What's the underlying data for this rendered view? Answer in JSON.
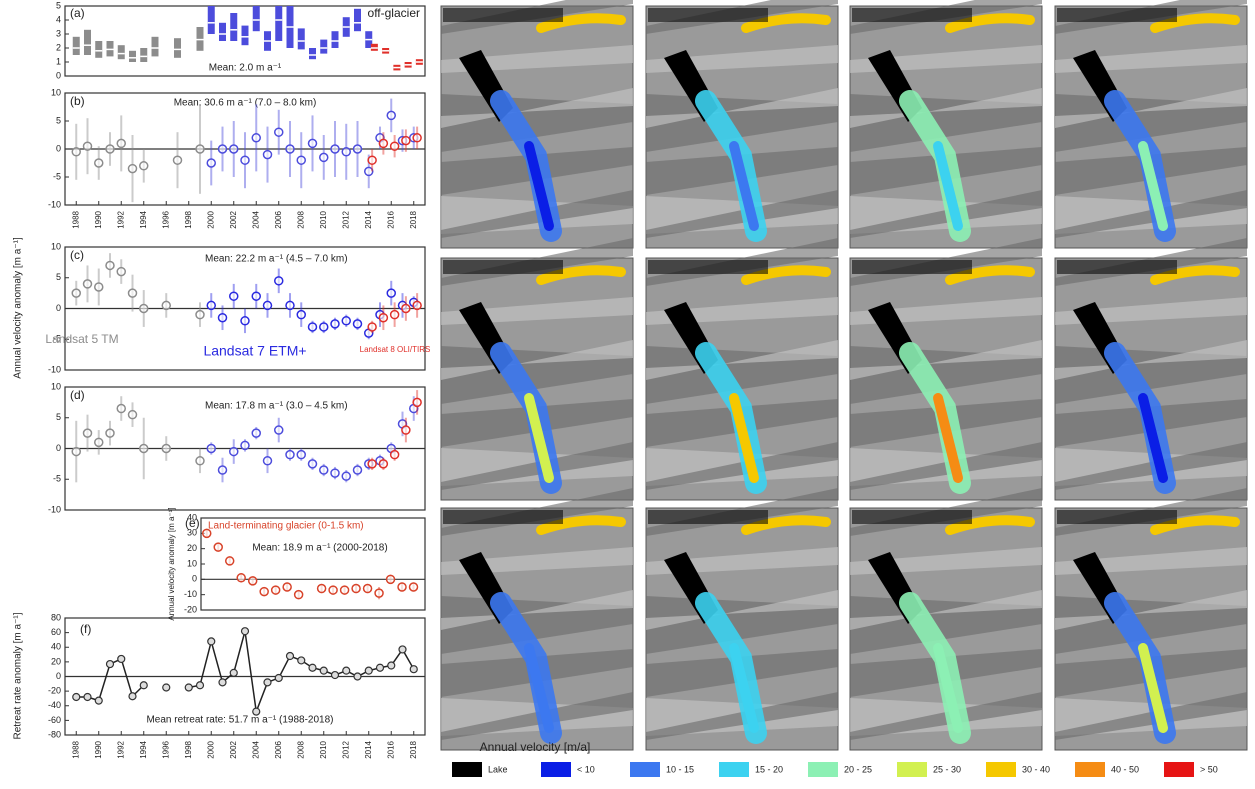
{
  "chart_data": [
    {
      "type": "range",
      "label": "(a)",
      "annotation": "off-glacier",
      "mean": "Mean: 2.0 m a⁻¹",
      "xlim": [
        1987,
        2019
      ],
      "ylim": [
        0,
        5
      ],
      "yticks": [
        0,
        1,
        2,
        3,
        4,
        5
      ],
      "series": [
        {
          "color": "#8c8c8c",
          "x": [
            1988,
            1989,
            1990,
            1991,
            1992,
            1993,
            1994,
            1995,
            1997,
            1999
          ],
          "values": [
            2.0,
            2.2,
            1.8,
            1.9,
            1.6,
            1.3,
            1.4,
            2.0,
            1.9,
            2.6
          ],
          "low": [
            1.5,
            1.5,
            1.3,
            1.4,
            1.2,
            1.0,
            1.0,
            1.4,
            1.3,
            1.8
          ],
          "high": [
            2.8,
            3.3,
            2.5,
            2.5,
            2.2,
            1.8,
            2.0,
            2.8,
            2.7,
            3.5
          ]
        },
        {
          "color": "#4c4cdc",
          "x": [
            2000,
            2001,
            2002,
            2003,
            2004,
            2005,
            2006,
            2007,
            2008,
            2009,
            2010,
            2011,
            2012,
            2013,
            2014
          ],
          "values": [
            3.8,
            3.0,
            3.3,
            2.8,
            4.0,
            2.5,
            4.0,
            3.5,
            2.5,
            1.5,
            2.0,
            2.5,
            3.5,
            3.8,
            2.6
          ],
          "low": [
            3.0,
            2.5,
            2.5,
            2.2,
            3.2,
            1.8,
            2.5,
            2.0,
            1.9,
            1.2,
            1.6,
            2.0,
            2.8,
            3.2,
            2.0
          ],
          "high": [
            5,
            3.8,
            4.5,
            3.6,
            5,
            3.2,
            5,
            5,
            3.4,
            2.0,
            2.6,
            3.2,
            4.2,
            4.8,
            3.2
          ]
        },
        {
          "color": "#e0302a",
          "x": [
            2014.5,
            2015.5,
            2016.5,
            2017.5,
            2018.5
          ],
          "values": [
            2.0,
            1.8,
            0.6,
            0.8,
            1.0
          ],
          "low": [
            1.8,
            1.6,
            0.4,
            0.6,
            0.8
          ],
          "high": [
            2.3,
            2.0,
            0.8,
            1.0,
            1.2
          ]
        }
      ]
    },
    {
      "type": "err",
      "label": "(b)",
      "mean": "Mean: 30.6 m a⁻¹ (7.0 – 8.0 km)",
      "xlim": [
        1987,
        2019
      ],
      "ylim": [
        -10,
        10
      ],
      "yticks": [
        -10,
        -5,
        0,
        5,
        10
      ],
      "xticks": [
        1988,
        1990,
        1992,
        1994,
        1996,
        1998,
        2000,
        2002,
        2004,
        2006,
        2008,
        2010,
        2012,
        2014,
        2016,
        2018
      ],
      "series": [
        {
          "color": "#8c8c8c",
          "x": [
            1988,
            1989,
            1990,
            1991,
            1992,
            1993,
            1994,
            1997,
            1999
          ],
          "values": [
            -0.5,
            0.5,
            -2.5,
            0,
            1,
            -3.5,
            -3,
            -2,
            0
          ],
          "errors": [
            5,
            5,
            3,
            3,
            5,
            6,
            3,
            5,
            8
          ]
        },
        {
          "color": "#4c4cdc",
          "x": [
            2000,
            2001,
            2002,
            2003,
            2004,
            2005,
            2006,
            2007,
            2008,
            2009,
            2010,
            2011,
            2012,
            2013,
            2014,
            2015,
            2016,
            2017,
            2018
          ],
          "values": [
            -2.5,
            0,
            0,
            -2,
            2,
            -1,
            3,
            0,
            -2,
            1,
            -1.5,
            0,
            -0.5,
            0,
            -4,
            2,
            6,
            1.5,
            2
          ],
          "errors": [
            4,
            4,
            5,
            5,
            6,
            5,
            4,
            5,
            5,
            5,
            4,
            5,
            5,
            5,
            3,
            2,
            3,
            2,
            2
          ]
        },
        {
          "color": "#e0302a",
          "x": [
            2014.3,
            2015.3,
            2016.3,
            2017.3,
            2018.3
          ],
          "values": [
            -2,
            1,
            0.5,
            1.5,
            2
          ],
          "errors": [
            2,
            2,
            2,
            2,
            2
          ]
        }
      ]
    },
    {
      "type": "err",
      "label": "(c)",
      "mean": "Mean: 22.2 m a⁻¹ (4.5 – 7.0 km)",
      "ylabel": "Annual velocity anomaly [m a⁻¹]",
      "xlim": [
        1987,
        2019
      ],
      "ylim": [
        -10,
        10
      ],
      "yticks": [
        -10,
        -5,
        0,
        5,
        10
      ],
      "series": [
        {
          "name": "Landsat 5 TM",
          "color": "#8c8c8c",
          "x": [
            1988,
            1989,
            1990,
            1991,
            1992,
            1993,
            1994,
            1996,
            1999
          ],
          "values": [
            2.5,
            4,
            3.5,
            7,
            6,
            2.5,
            0,
            0.5,
            -1
          ],
          "errors": [
            2,
            3,
            3,
            2,
            2,
            3,
            3,
            2,
            2
          ]
        },
        {
          "name": "Landsat 7 ETM+",
          "color": "#2a2ae0",
          "x": [
            2000,
            2001,
            2002,
            2003,
            2004,
            2005,
            2006,
            2007,
            2008,
            2009,
            2010,
            2011,
            2012,
            2013,
            2014,
            2015,
            2016,
            2017,
            2018
          ],
          "values": [
            0.5,
            -1.5,
            2,
            -2,
            2,
            0.5,
            4.5,
            0.5,
            -1,
            -3,
            -3,
            -2.5,
            -2,
            -2.5,
            -4,
            -1,
            2.5,
            0.5,
            1
          ],
          "errors": [
            2,
            2,
            2,
            2,
            2,
            2,
            2,
            2,
            2,
            1,
            1,
            1,
            1,
            1,
            1,
            2,
            2,
            2,
            1
          ]
        },
        {
          "name": "Landsat 8 OLI/TIRS",
          "color": "#e0302a",
          "x": [
            2014.3,
            2015.3,
            2016.3,
            2017.3,
            2018.3
          ],
          "values": [
            -3,
            -1.5,
            -1,
            0,
            0.5
          ],
          "errors": [
            1,
            2,
            2,
            2,
            2
          ]
        }
      ]
    },
    {
      "type": "err",
      "label": "(d)",
      "mean": "Mean: 17.8 m a⁻¹ (3.0 – 4.5 km)",
      "xlim": [
        1987,
        2019
      ],
      "ylim": [
        -10,
        10
      ],
      "yticks": [
        -10,
        -5,
        0,
        5,
        10
      ],
      "series": [
        {
          "color": "#8c8c8c",
          "x": [
            1988,
            1989,
            1990,
            1991,
            1992,
            1993,
            1994,
            1996,
            1999
          ],
          "values": [
            -0.5,
            2.5,
            1,
            2.5,
            6.5,
            5.5,
            0,
            0,
            -2
          ],
          "errors": [
            5,
            3,
            2,
            2,
            2,
            2,
            5,
            2,
            2
          ]
        },
        {
          "color": "#4c4cdc",
          "x": [
            2000,
            2001,
            2002,
            2003,
            2004,
            2005,
            2006,
            2007,
            2008,
            2009,
            2010,
            2011,
            2012,
            2013,
            2014,
            2015,
            2016,
            2017,
            2018
          ],
          "values": [
            0,
            -3.5,
            -0.5,
            0.5,
            2.5,
            -2,
            3,
            -1,
            -1,
            -2.5,
            -3.5,
            -4,
            -4.5,
            -3.5,
            -2.5,
            -2,
            0,
            4,
            6.5
          ],
          "errors": [
            1,
            2,
            2,
            1,
            1,
            2,
            2,
            1,
            1,
            1,
            1,
            1,
            1,
            1,
            1,
            1,
            1,
            2,
            2
          ]
        },
        {
          "color": "#e0302a",
          "x": [
            2014.3,
            2015.3,
            2016.3,
            2017.3,
            2018.3
          ],
          "values": [
            -2.5,
            -2.5,
            -1,
            3,
            7.5
          ],
          "errors": [
            1,
            1,
            1,
            2,
            2
          ]
        }
      ]
    },
    {
      "type": "err",
      "label": "(e)",
      "annotation": "Land-terminating glacier (0-1.5 km)",
      "mean": "Mean: 18.9 m a⁻¹ (2000-2018)",
      "ylabel": "Annual velocity anomaly [m a⁻¹]",
      "xlim": [
        1999.5,
        2019
      ],
      "ylim": [
        -20,
        40
      ],
      "yticks": [
        -20,
        -10,
        0,
        10,
        20,
        30,
        40
      ],
      "series": [
        {
          "color": "#d8432a",
          "x": [
            2000,
            2001,
            2002,
            2003,
            2004,
            2005,
            2006,
            2007,
            2008,
            2010,
            2011,
            2012,
            2013,
            2014,
            2015,
            2016,
            2017,
            2018
          ],
          "values": [
            30,
            21,
            12,
            1,
            -1,
            -8,
            -7,
            -5,
            -10,
            -6,
            -7,
            -7,
            -6,
            -6,
            -9,
            0,
            -5,
            -5
          ],
          "errors": [
            3,
            3,
            3,
            3,
            3,
            3,
            3,
            3,
            3,
            3,
            3,
            3,
            3,
            3,
            4,
            3,
            3,
            3
          ]
        }
      ]
    },
    {
      "type": "line",
      "label": "(f)",
      "mean": "Mean retreat rate: 51.7 m a⁻¹ (1988-2018)",
      "ylabel": "Retreat rate anomaly [m a⁻¹]",
      "xlim": [
        1987,
        2019
      ],
      "ylim": [
        -80,
        80
      ],
      "yticks": [
        -80,
        -60,
        -40,
        -20,
        0,
        20,
        40,
        60,
        80
      ],
      "xticks": [
        1988,
        1990,
        1992,
        1994,
        1996,
        1998,
        2000,
        2002,
        2004,
        2006,
        2008,
        2010,
        2012,
        2014,
        2016,
        2018
      ],
      "series": [
        {
          "color": "#222222",
          "x": [
            1988,
            1989,
            1990,
            1991,
            1992,
            1993,
            1994,
            1995,
            1996,
            1997,
            1998,
            1999,
            2000,
            2001,
            2002,
            2003,
            2004,
            2005,
            2006,
            2007,
            2008,
            2009,
            2010,
            2011,
            2012,
            2013,
            2014,
            2015,
            2016,
            2017,
            2018
          ],
          "values": [
            -28,
            -28,
            -33,
            17,
            24,
            -27,
            -12,
            null,
            -15,
            null,
            -15,
            -12,
            48,
            -8,
            5,
            62,
            -48,
            -8,
            -2,
            28,
            22,
            12,
            8,
            2,
            8,
            0,
            8,
            12,
            15,
            37,
            10
          ]
        }
      ]
    }
  ],
  "maps": {
    "xlabel": "Annual velocity [m/a]",
    "legend": [
      {
        "label": "Lake",
        "color": "#000000"
      },
      {
        "label": "< 10",
        "color": "#0a1ee6"
      },
      {
        "label": "10 - 15",
        "color": "#3c78f0"
      },
      {
        "label": "15 - 20",
        "color": "#3cd2f0"
      },
      {
        "label": "20 - 25",
        "color": "#8cf0b4"
      },
      {
        "label": "25 - 30",
        "color": "#d2f050"
      },
      {
        "label": "30 - 40",
        "color": "#f5c800"
      },
      {
        "label": "40 - 50",
        "color": "#f58c14"
      },
      {
        "label": "> 50",
        "color": "#e61414"
      }
    ]
  }
}
